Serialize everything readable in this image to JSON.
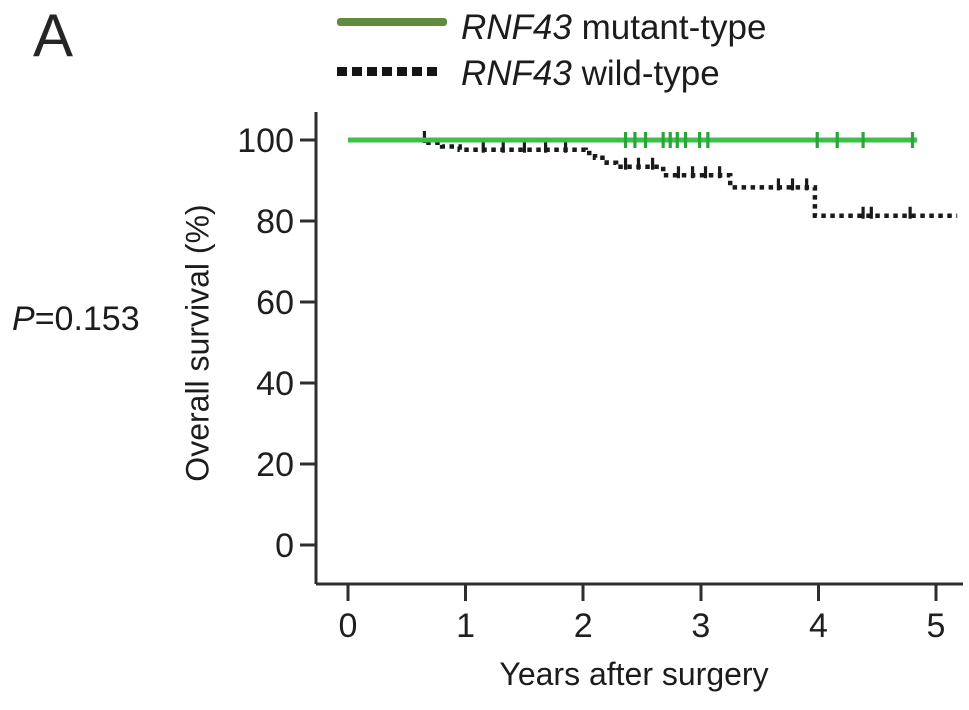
{
  "panel_label": "A",
  "p_value": {
    "italic": "P",
    "rest": "=0.153"
  },
  "legend": {
    "items": [
      {
        "gene": "RNF43",
        "rest": " mutant-type",
        "swatch": "solid",
        "swatch_color": "#618c40"
      },
      {
        "gene": "RNF43",
        "rest": " wild-type",
        "swatch": "dotted",
        "swatch_color": "#141414"
      }
    ]
  },
  "chart_data": {
    "type": "line",
    "subtype": "kaplan-meier-step",
    "title": "",
    "xlabel": "Years after surgery",
    "ylabel": "Overall survival (%)",
    "xlim": [
      0,
      5.3
    ],
    "ylim": [
      0,
      100
    ],
    "xticks": [
      0,
      1,
      2,
      3,
      4,
      5
    ],
    "yticks": [
      0,
      20,
      40,
      60,
      80,
      100
    ],
    "grid": false,
    "legend_position": "top-center",
    "annotation": "P=0.153",
    "series": [
      {
        "name": "RNF43 mutant-type",
        "color": "#3fbe49",
        "censor_color": "#2ba43a",
        "line_style": "solid",
        "steps": [
          [
            0,
            100
          ],
          [
            4.84,
            100
          ]
        ],
        "censors": [
          [
            2.36,
            100
          ],
          [
            2.44,
            100
          ],
          [
            2.53,
            100
          ],
          [
            2.68,
            100
          ],
          [
            2.74,
            100
          ],
          [
            2.8,
            100
          ],
          [
            2.87,
            100
          ],
          [
            2.99,
            100
          ],
          [
            3.06,
            100
          ],
          [
            3.99,
            100
          ],
          [
            4.16,
            100
          ],
          [
            4.38,
            100
          ],
          [
            4.8,
            100
          ]
        ]
      },
      {
        "name": "RNF43 wild-type",
        "color": "#1a1a1a",
        "censor_color": "#1a1a1a",
        "line_style": "dotted",
        "steps": [
          [
            0,
            100
          ],
          [
            0.63,
            100
          ],
          [
            0.63,
            99.3
          ],
          [
            0.8,
            99.3
          ],
          [
            0.8,
            98.4
          ],
          [
            0.95,
            98.4
          ],
          [
            0.95,
            97.6
          ],
          [
            2.02,
            97.6
          ],
          [
            2.02,
            96.8
          ],
          [
            2.1,
            96.8
          ],
          [
            2.1,
            95.6
          ],
          [
            2.2,
            95.6
          ],
          [
            2.2,
            94.4
          ],
          [
            2.28,
            94.4
          ],
          [
            2.28,
            93.4
          ],
          [
            2.68,
            93.4
          ],
          [
            2.68,
            91.3
          ],
          [
            3.25,
            91.3
          ],
          [
            3.25,
            88.3
          ],
          [
            3.97,
            88.3
          ],
          [
            3.97,
            81.3
          ],
          [
            5.18,
            81.3
          ]
        ],
        "censors": [
          [
            0.65,
            100
          ],
          [
            1.15,
            97.6
          ],
          [
            1.32,
            97.6
          ],
          [
            1.5,
            97.6
          ],
          [
            1.68,
            97.6
          ],
          [
            1.85,
            97.6
          ],
          [
            2.36,
            93.4
          ],
          [
            2.47,
            93.4
          ],
          [
            2.59,
            93.4
          ],
          [
            2.81,
            91.3
          ],
          [
            2.93,
            91.3
          ],
          [
            3.04,
            91.3
          ],
          [
            3.16,
            91.3
          ],
          [
            3.66,
            88.3
          ],
          [
            3.78,
            88.3
          ],
          [
            3.9,
            88.3
          ],
          [
            4.38,
            81.3
          ],
          [
            4.45,
            81.3
          ],
          [
            4.78,
            81.3
          ]
        ]
      }
    ]
  }
}
